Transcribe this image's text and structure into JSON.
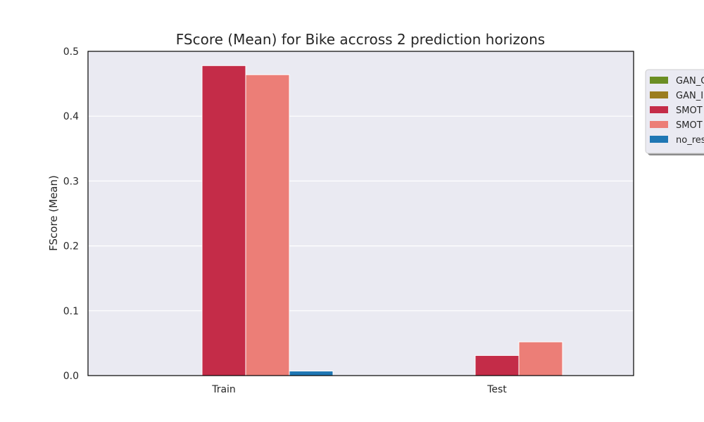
{
  "chart_data": {
    "type": "bar",
    "title": "FScore (Mean) for Bike accross 2 prediction horizons",
    "xlabel": "",
    "ylabel": "FScore (Mean)",
    "categories": [
      "Train",
      "Test"
    ],
    "ylim": [
      0,
      0.5
    ],
    "yticks": [
      "0.0",
      "0.1",
      "0.2",
      "0.3",
      "0.4",
      "0.5"
    ],
    "grid": true,
    "legend_position": "right, outside (clipped)",
    "series": [
      {
        "name": "GAN_C",
        "color": "#6b8e23",
        "values": [
          0.0,
          0.0
        ]
      },
      {
        "name": "GAN_I",
        "color": "#9b7d1f",
        "values": [
          0.0,
          0.0
        ]
      },
      {
        "name": "SMOT",
        "color": "#c42c48",
        "values": [
          0.478,
          0.031
        ]
      },
      {
        "name": "SMOT",
        "color": "#ec7e77",
        "values": [
          0.464,
          0.052
        ]
      },
      {
        "name": "no_res",
        "color": "#1f77b4",
        "values": [
          0.007,
          0.0
        ]
      }
    ]
  }
}
